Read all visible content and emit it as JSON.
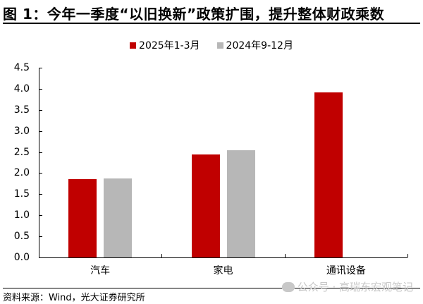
{
  "header": {
    "title": "图 1：今年一季度“以旧换新”政策扩围，提升整体财政乘数"
  },
  "legend": [
    {
      "label": "2025年1-3月",
      "color": "#c00000"
    },
    {
      "label": "2024年9-12月",
      "color": "#b7b7b7"
    }
  ],
  "yaxis": {
    "ticks": [
      "4.5",
      "4.0",
      "3.5",
      "3.0",
      "2.5",
      "2.0",
      "1.5",
      "1.0",
      "0.5",
      "0.0"
    ]
  },
  "xaxis": {
    "categories": [
      "汽车",
      "家电",
      "通讯设备"
    ]
  },
  "footer": {
    "source": "资料来源：Wind，光大证券研究所",
    "watermark": "公众号 · 高瑞东宏观笔记"
  },
  "chart_data": {
    "type": "bar",
    "title": "图 1：今年一季度“以旧换新”政策扩围，提升整体财政乘数",
    "categories": [
      "汽车",
      "家电",
      "通讯设备"
    ],
    "series": [
      {
        "name": "2025年1-3月",
        "color": "#c00000",
        "values": [
          1.85,
          2.44,
          3.92
        ]
      },
      {
        "name": "2024年9-12月",
        "color": "#b7b7b7",
        "values": [
          1.87,
          2.54,
          null
        ]
      }
    ],
    "xlabel": "",
    "ylabel": "",
    "ylim": [
      0,
      4.5
    ],
    "yticks": [
      0.0,
      0.5,
      1.0,
      1.5,
      2.0,
      2.5,
      3.0,
      3.5,
      4.0,
      4.5
    ],
    "grid": false,
    "legend_position": "top"
  }
}
